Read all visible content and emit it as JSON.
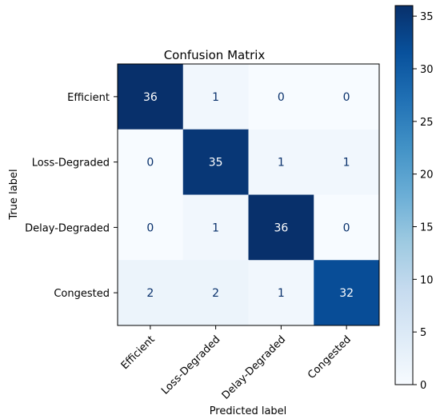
{
  "chart_data": {
    "type": "heatmap",
    "title": "Confusion Matrix",
    "xlabel": "Predicted label",
    "ylabel": "True label",
    "x_categories": [
      "Efficient",
      "Loss-Degraded",
      "Delay-Degraded",
      "Congested"
    ],
    "y_categories": [
      "Efficient",
      "Loss-Degraded",
      "Delay-Degraded",
      "Congested"
    ],
    "matrix": [
      [
        36,
        1,
        0,
        0
      ],
      [
        0,
        35,
        1,
        1
      ],
      [
        0,
        1,
        36,
        0
      ],
      [
        2,
        2,
        1,
        32
      ]
    ],
    "colormap": "Blues",
    "color_range": [
      0,
      36
    ],
    "colorbar_ticks": [
      0,
      5,
      10,
      15,
      20,
      25,
      30,
      35
    ],
    "colorbar_tick_labels": [
      "0",
      "5",
      "10",
      "15",
      "20",
      "25",
      "30",
      "35"
    ],
    "colors": {
      "low": "#f7fbff",
      "high": "#08306b",
      "text_dark": "#08306b",
      "text_light": "#ffffff"
    }
  }
}
